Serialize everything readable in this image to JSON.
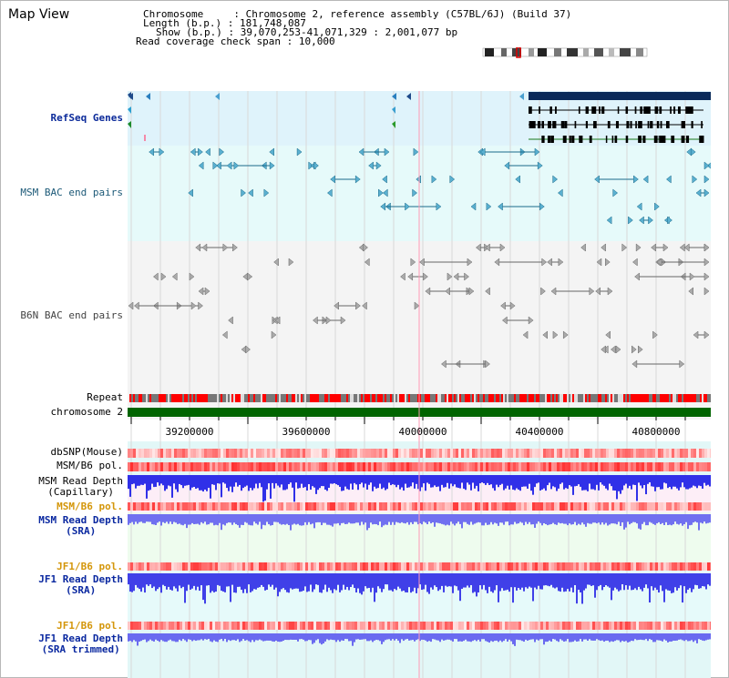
{
  "view_title": "Map View",
  "header": {
    "chromosome_label": "Chromosome",
    "chromosome_value": "Chromosome 2, reference assembly (C57BL/6J) (Build 37)",
    "length_label": "Length (b.p.)",
    "length_value": "181,748,087",
    "show_label": "Show (b.p.)",
    "show_value": "39,070,253-41,071,329 : 2,001,077 bp",
    "span_label": "Read coverage check span",
    "span_value": "10,000"
  },
  "tracks": {
    "refseq": "RefSeq Genes",
    "msm_bac": "MSM BAC end pairs",
    "b6n_bac": "B6N BAC end pairs",
    "repeat": "Repeat",
    "chromosome": "chromosome 2",
    "dbsnp": "dbSNP(Mouse)",
    "msm_b6_pol_1": "MSM/B6 pol.",
    "msm_depth_cap_1": "MSM Read Depth",
    "msm_depth_cap_2": "(Capillary)",
    "msm_b6_pol_2": "MSM/B6 pol.",
    "msm_depth_sra_1": "MSM Read Depth",
    "msm_depth_sra_2": "(SRA)",
    "jf1_pol_1": "JF1/B6 pol.",
    "jf1_depth_sra_1": "JF1 Read Depth",
    "jf1_depth_sra_2": "(SRA)",
    "jf1_pol_2": "JF1/B6 pol.",
    "jf1_depth_trim_1": "JF1 Read Depth",
    "jf1_depth_trim_2": "(SRA trimmed)"
  },
  "axis": {
    "ticks": [
      "39200000",
      "39600000",
      "40000000",
      "40400000",
      "40800000"
    ]
  },
  "colors": {
    "refseq_bg": "#dff3fb",
    "msm_bac_bg": "#e6fafa",
    "b6n_bg": "#f4f4f4",
    "chromosome_bar": "#006400",
    "repeat_red": "#ff0000",
    "repeat_gray": "#777777",
    "depth_blue": "#2020e0",
    "pol_red": "#ff3030"
  }
}
